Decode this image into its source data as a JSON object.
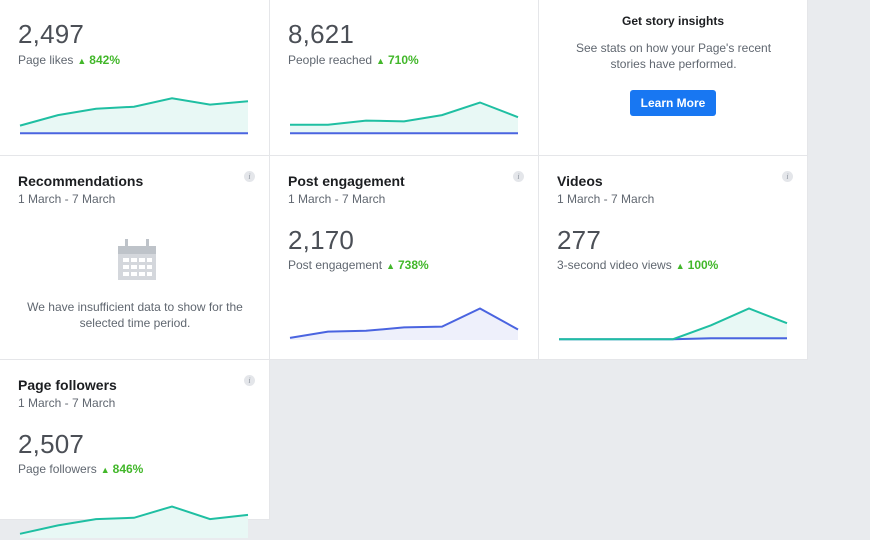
{
  "colors": {
    "page_bg": "#e9ebee",
    "teal": "#1fbfa2",
    "teal_fill": "#e8f8f5",
    "blue": "#4a64e0",
    "blue_fill": "#eef0fb",
    "green": "#42b72a",
    "button": "#1877f2"
  },
  "page_likes": {
    "value": "2,497",
    "label": "Page likes",
    "change": "842%",
    "trend": [
      0.2,
      0.45,
      0.6,
      0.65,
      0.85,
      0.7,
      0.78
    ],
    "baseline": [
      0.02,
      0.02,
      0.02,
      0.02,
      0.02,
      0.02,
      0.02
    ]
  },
  "people_reached": {
    "value": "8,621",
    "label": "People reached",
    "change": "710%",
    "trend": [
      0.22,
      0.22,
      0.32,
      0.3,
      0.45,
      0.75,
      0.4
    ],
    "baseline": [
      0.02,
      0.02,
      0.02,
      0.02,
      0.02,
      0.02,
      0.02
    ]
  },
  "story_insights": {
    "title": "Get story insights",
    "description": "See stats on how your Page's recent stories have performed.",
    "button_label": "Learn More"
  },
  "recommendations": {
    "title": "Recommendations",
    "date_range": "1 March - 7 March",
    "empty_message": "We have insufficient data to show for the selected time period.",
    "icon": "calendar-icon"
  },
  "post_engagement": {
    "title": "Post engagement",
    "date_range": "1 March - 7 March",
    "value": "2,170",
    "label": "Post engagement",
    "change": "738%",
    "trend": [
      0.05,
      0.2,
      0.22,
      0.3,
      0.32,
      0.75,
      0.25
    ]
  },
  "videos": {
    "title": "Videos",
    "date_range": "1 March - 7 March",
    "value": "277",
    "label": "3-second video views",
    "change": "100%",
    "trend": [
      0.02,
      0.02,
      0.02,
      0.02,
      0.35,
      0.75,
      0.4
    ],
    "baseline": [
      0.02,
      0.02,
      0.02,
      0.02,
      0.04,
      0.04,
      0.04
    ]
  },
  "page_followers": {
    "title": "Page followers",
    "date_range": "1 March - 7 March",
    "value": "2,507",
    "label": "Page followers",
    "change": "846%",
    "trend": [
      0.1,
      0.3,
      0.45,
      0.48,
      0.75,
      0.45,
      0.55
    ]
  }
}
